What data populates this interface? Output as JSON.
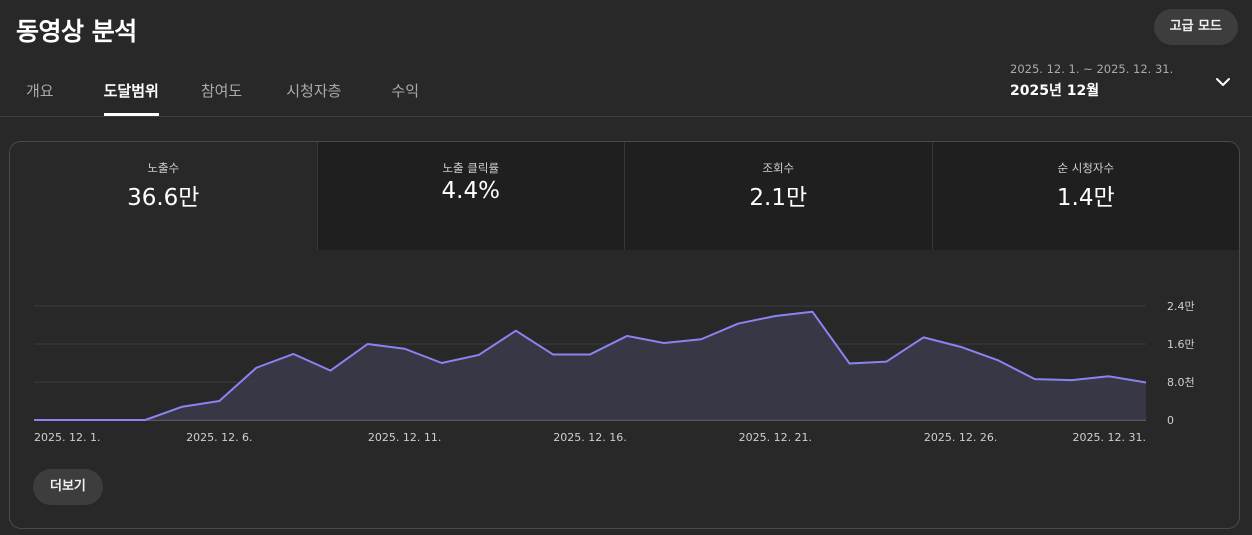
{
  "header": {
    "title": "동영상 분석",
    "advanced_mode_label": "고급 모드"
  },
  "tabs": [
    {
      "label": "개요"
    },
    {
      "label": "도달범위"
    },
    {
      "label": "참여도"
    },
    {
      "label": "시청자층"
    },
    {
      "label": "수익"
    }
  ],
  "active_tab": "도달범위",
  "date_picker": {
    "range": "2025. 12. 1. ~ 2025. 12. 31.",
    "label": "2025년 12월",
    "icon": "chevron-down-icon"
  },
  "metrics": [
    {
      "label": "노출수",
      "value": "36.6만"
    },
    {
      "label": "노출 클릭률",
      "value": "4.4%"
    },
    {
      "label": "조회수",
      "value": "2.1만"
    },
    {
      "label": "순 시청자수",
      "value": "1.4만"
    }
  ],
  "chart_data": {
    "type": "area",
    "x_tick_labels": [
      "2025. 12. 1.",
      "2025. 12. 6.",
      "2025. 12. 11.",
      "2025. 12. 16.",
      "2025. 12. 21.",
      "2025. 12. 26.",
      "2025. 12. 31."
    ],
    "x_tick_days": [
      1,
      6,
      11,
      16,
      21,
      26,
      31
    ],
    "y_tick_labels": [
      "0",
      "8.0천",
      "1.6만",
      "2.4만"
    ],
    "y_tick_values": [
      0,
      8000,
      16000,
      24000
    ],
    "ylim": [
      0,
      24000
    ],
    "x": [
      1,
      2,
      3,
      4,
      5,
      6,
      7,
      8,
      9,
      10,
      11,
      12,
      13,
      14,
      15,
      16,
      17,
      18,
      19,
      20,
      21,
      22,
      23,
      24,
      25,
      26,
      27,
      28,
      29,
      30,
      31
    ],
    "values": [
      0,
      0,
      0,
      0,
      2800,
      4000,
      11000,
      13900,
      10400,
      16000,
      15000,
      12000,
      13700,
      18800,
      13800,
      13800,
      17700,
      16200,
      17000,
      20300,
      21900,
      22800,
      11900,
      12300,
      17400,
      15400,
      12600,
      8600,
      8400,
      9200,
      7900
    ],
    "line_color": "#8c83f2",
    "fill_color": "#3a3848",
    "grid": true
  },
  "more_button_label": "더보기"
}
